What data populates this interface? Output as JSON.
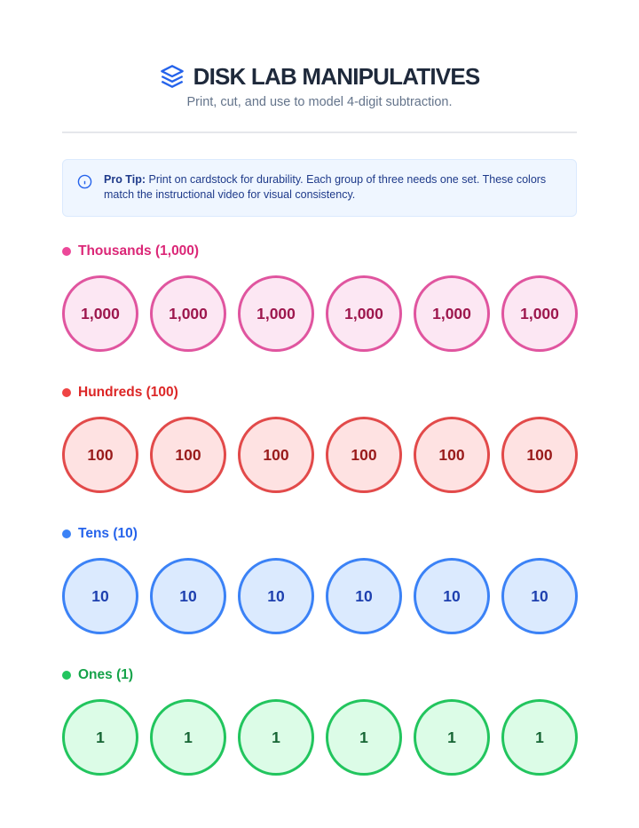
{
  "header": {
    "title": "DISK LAB MANIPULATIVES",
    "subtitle": "Print, cut, and use to model 4-digit subtraction."
  },
  "tip": {
    "label": "Pro Tip:",
    "text": "Print on cardstock for durability. Each group of three needs one set. These colors match the instructional video for visual consistency."
  },
  "sections": [
    {
      "label": "Thousands (1,000)",
      "disks": [
        "1,000",
        "1,000",
        "1,000",
        "1,000",
        "1,000",
        "1,000"
      ]
    },
    {
      "label": "Hundreds (100)",
      "disks": [
        "100",
        "100",
        "100",
        "100",
        "100",
        "100"
      ]
    },
    {
      "label": "Tens (10)",
      "disks": [
        "10",
        "10",
        "10",
        "10",
        "10",
        "10"
      ]
    },
    {
      "label": "Ones (1)",
      "disks": [
        "1",
        "1",
        "1",
        "1",
        "1",
        "1"
      ]
    }
  ]
}
